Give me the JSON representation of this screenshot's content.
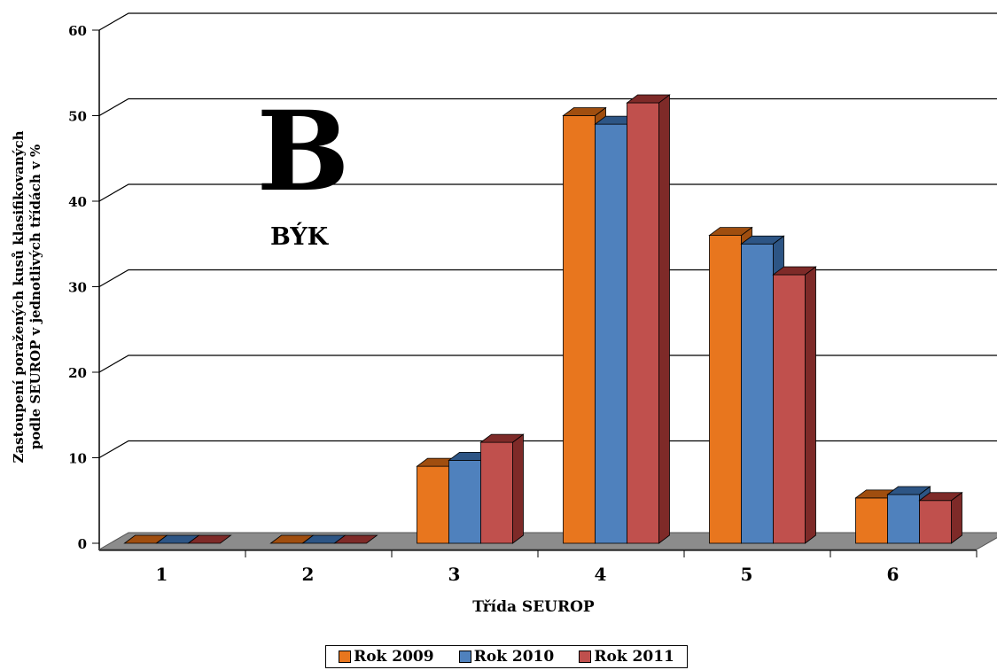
{
  "chart_data": {
    "type": "bar",
    "xlabel": "Třída SEUROP",
    "ylabel_lines": [
      "Zastoupení poražených  kusů klasifikovaných",
      "podle SEUROP v jednotlivých třídách v %"
    ],
    "categories": [
      "1",
      "2",
      "3",
      "4",
      "5",
      "6"
    ],
    "series": [
      {
        "name": "Rok 2009",
        "values": [
          0,
          0,
          9,
          50,
          36,
          5.3
        ]
      },
      {
        "name": "Rok 2010",
        "values": [
          0,
          0,
          9.7,
          49,
          35,
          5.7
        ]
      },
      {
        "name": "Rok 2011",
        "values": [
          0,
          0,
          11.8,
          51.5,
          31.4,
          5
        ]
      }
    ],
    "yticks": [
      "0",
      "10",
      "20",
      "30",
      "40",
      "50",
      "60"
    ],
    "ylim": [
      0,
      60
    ],
    "grid": true,
    "legend_position": "bottom",
    "big_letter": "B",
    "subtitle": "BÝK",
    "colors": [
      "#e8761e",
      "#4f81bd",
      "#c0504d"
    ],
    "dark_colors": [
      "#a04e0f",
      "#2d5585",
      "#7e2a28"
    ],
    "floor_color": "#8c8c8c"
  }
}
